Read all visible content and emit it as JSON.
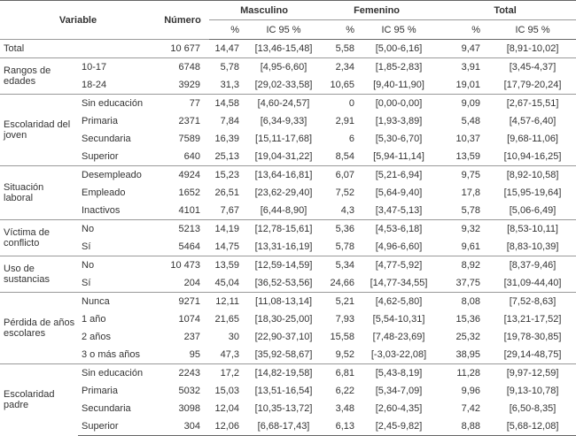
{
  "header": {
    "variable": "Variable",
    "numero": "Número",
    "groups": [
      "Masculino",
      "Femenino",
      "Total"
    ],
    "sub": [
      "%",
      "IC 95 %",
      "%",
      "IC 95 %",
      "%",
      "IC 95 %"
    ]
  },
  "total_row": {
    "label": "Total",
    "cells": [
      "10 677",
      "14,47",
      "[13,46-15,48]",
      "5,58",
      "[5,00-6,16]",
      "9,47",
      "[8,91-10,02]"
    ]
  },
  "groups": [
    {
      "label": "Rangos de edades",
      "rows": [
        [
          "10-17",
          "6748",
          "5,78",
          "[4,95-6,60]",
          "2,34",
          "[1,85-2,83]",
          "3,91",
          "[3,45-4,37]"
        ],
        [
          "18-24",
          "3929",
          "31,3",
          "[29,02-33,58]",
          "10,65",
          "[9,40-11,90]",
          "19,01",
          "[17,79-20,24]"
        ]
      ]
    },
    {
      "label": "Escolaridad del joven",
      "rows": [
        [
          "Sin educación",
          "77",
          "14,58",
          "[4,60-24,57]",
          "0",
          "[0,00-0,00]",
          "9,09",
          "[2,67-15,51]"
        ],
        [
          "Primaria",
          "2371",
          "7,84",
          "[6,34-9,33]",
          "2,91",
          "[1,93-3,89]",
          "5,48",
          "[4,57-6,40]"
        ],
        [
          "Secundaria",
          "7589",
          "16,39",
          "[15,11-17,68]",
          "6",
          "[5,30-6,70]",
          "10,37",
          "[9,68-11,06]"
        ],
        [
          "Superior",
          "640",
          "25,13",
          "[19,04-31,22]",
          "8,54",
          "[5,94-11,14]",
          "13,59",
          "[10,94-16,25]"
        ]
      ]
    },
    {
      "label": "Situación laboral",
      "rows": [
        [
          "Desempleado",
          "4924",
          "15,23",
          "[13,64-16,81]",
          "6,07",
          "[5,21-6,94]",
          "9,75",
          "[8,92-10,58]"
        ],
        [
          "Empleado",
          "1652",
          "26,51",
          "[23,62-29,40]",
          "7,52",
          "[5,64-9,40]",
          "17,8",
          "[15,95-19,64]"
        ],
        [
          "Inactivos",
          "4101",
          "7,67",
          "[6,44-8,90]",
          "4,3",
          "[3,47-5,13]",
          "5,78",
          "[5,06-6,49]"
        ]
      ]
    },
    {
      "label": "Víctima de conflicto",
      "rows": [
        [
          "No",
          "5213",
          "14,19",
          "[12,78-15,61]",
          "5,36",
          "[4,53-6,18]",
          "9,32",
          "[8,53-10,11]"
        ],
        [
          "Sí",
          "5464",
          "14,75",
          "[13,31-16,19]",
          "5,78",
          "[4,96-6,60]",
          "9,61",
          "[8,83-10,39]"
        ]
      ]
    },
    {
      "label": "Uso de sustancias",
      "rows": [
        [
          "No",
          "10 473",
          "13,59",
          "[12,59-14,59]",
          "5,34",
          "[4,77-5,92]",
          "8,92",
          "[8,37-9,46]"
        ],
        [
          "Sí",
          "204",
          "45,04",
          "[36,52-53,56]",
          "24,66",
          "[14,77-34,55]",
          "37,75",
          "[31,09-44,40]"
        ]
      ]
    },
    {
      "label": "Pérdida de años escolares",
      "rows": [
        [
          "Nunca",
          "9271",
          "12,11",
          "[11,08-13,14]",
          "5,21",
          "[4,62-5,80]",
          "8,08",
          "[7,52-8,63]"
        ],
        [
          "1 año",
          "1074",
          "21,65",
          "[18,30-25,00]",
          "7,93",
          "[5,54-10,31]",
          "15,36",
          "[13,21-17,52]"
        ],
        [
          "2 años",
          "237",
          "30",
          "[22,90-37,10]",
          "15,58",
          "[7,48-23,69]",
          "25,32",
          "[19,78-30,85]"
        ],
        [
          "3 o más años",
          "95",
          "47,3",
          "[35,92-58,67]",
          "9,52",
          "[-3,03-22,08]",
          "38,95",
          "[29,14-48,75]"
        ]
      ]
    },
    {
      "label": "Escolaridad padre",
      "rows": [
        [
          "Sin educación",
          "2243",
          "17,2",
          "[14,82-19,58]",
          "6,81",
          "[5,43-8,19]",
          "11,28",
          "[9,97-12,59]"
        ],
        [
          "Primaria",
          "5032",
          "15,03",
          "[13,51-16,54]",
          "6,22",
          "[5,34-7,09]",
          "9,96",
          "[9,13-10,78]"
        ],
        [
          "Secundaria",
          "3098",
          "12,04",
          "[10,35-13,72]",
          "3,48",
          "[2,60-4,35]",
          "7,42",
          "[6,50-8,35]"
        ],
        [
          "Superior",
          "304",
          "12,06",
          "[6,68-17,43]",
          "6,13",
          "[2,45-9,82]",
          "8,88",
          "[5,68-12,08]"
        ]
      ]
    }
  ]
}
